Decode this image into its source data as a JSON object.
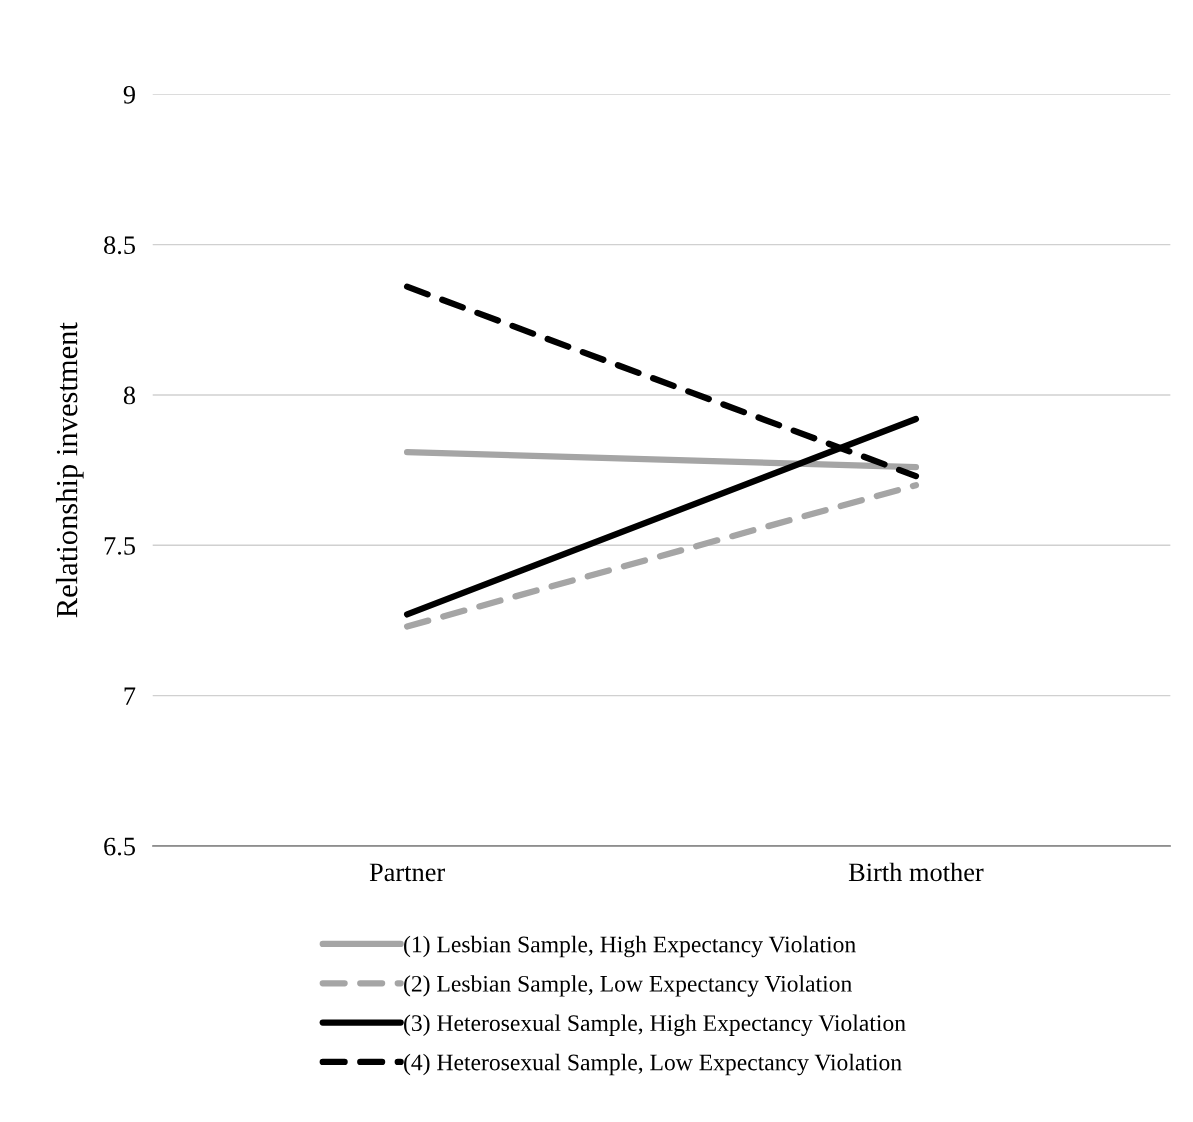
{
  "chart_data": {
    "type": "line",
    "ylabel": "Relationship investment",
    "categories": [
      "Partner",
      "Birth mother"
    ],
    "series": [
      {
        "name": "(1) Lesbian Sample, High Expectancy Violation",
        "color": "#a5a5a5",
        "line_style": "solid",
        "values": [
          7.81,
          7.76
        ]
      },
      {
        "name": "(2) Lesbian Sample, Low Expectancy Violation",
        "color": "#a5a5a5",
        "line_style": "dashed",
        "values": [
          7.23,
          7.7
        ]
      },
      {
        "name": "(3) Heterosexual Sample, High Expectancy Violation",
        "color": "#000000",
        "line_style": "solid",
        "values": [
          7.27,
          7.92
        ]
      },
      {
        "name": "(4) Heterosexual Sample, Low Expectancy Violation",
        "color": "#000000",
        "line_style": "dashed",
        "values": [
          8.36,
          7.73
        ]
      }
    ],
    "ylim": [
      6.5,
      9
    ],
    "yticks": [
      6.5,
      7,
      7.5,
      8,
      8.5,
      9
    ],
    "grid": "y",
    "legend": "bottom",
    "marker": "none"
  }
}
